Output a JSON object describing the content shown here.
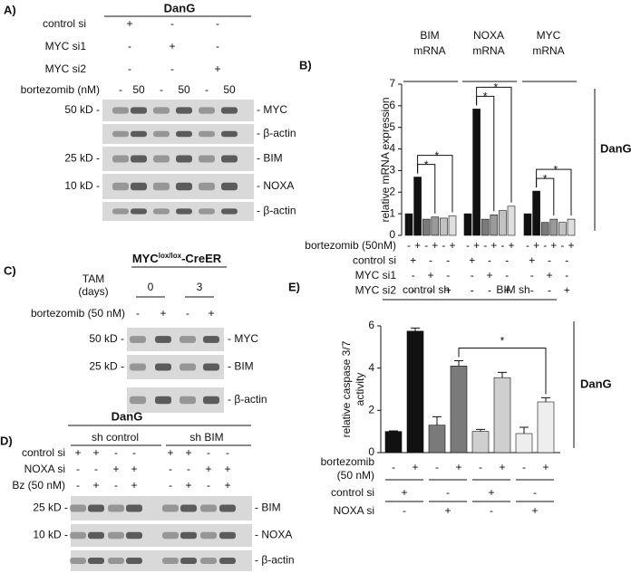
{
  "figure": {
    "panel_a": {
      "label": "A)",
      "cell_line": "DanG",
      "conditions": [
        {
          "label": "control si",
          "marks": [
            "+",
            "-",
            "-"
          ]
        },
        {
          "label": "MYC si1",
          "marks": [
            "-",
            "+",
            "-"
          ]
        },
        {
          "label": "MYC si2",
          "marks": [
            "-",
            "-",
            "+"
          ]
        }
      ],
      "treatment": {
        "label": "bortezomib (nM)",
        "marks": [
          "-",
          "50",
          "-",
          "50",
          "-",
          "50"
        ]
      },
      "blots": [
        {
          "size": "50 kD -",
          "protein": "- MYC"
        },
        {
          "protein": "- β-actin"
        },
        {
          "size": "25 kD -",
          "protein": "- BIM"
        },
        {
          "size": "10 kD -",
          "protein": "- NOXA"
        },
        {
          "protein": "- β-actin"
        }
      ]
    },
    "panel_c": {
      "label": "C)",
      "model": [
        "MYC",
        "lox/lox",
        "-CreER"
      ],
      "tam": {
        "label": [
          "TAM",
          "(days)"
        ],
        "days": [
          "0",
          "3"
        ]
      },
      "treatment": {
        "label": "bortezomib (50 nM)",
        "marks": [
          "-",
          "+",
          "-",
          "+"
        ]
      },
      "blots": [
        {
          "size": "50 kD -",
          "protein": "- MYC"
        },
        {
          "size": "25 kD -",
          "protein": "- BIM"
        },
        {
          "protein": "- β-actin"
        }
      ]
    },
    "panel_d": {
      "label": "D)",
      "cell_line": "DanG",
      "groups": [
        "sh control",
        "sh BIM"
      ],
      "conditions": [
        {
          "label": "control si",
          "marks": [
            "+",
            "+",
            "-",
            "-",
            "+",
            "+",
            "-",
            "-"
          ]
        },
        {
          "label": "NOXA si",
          "marks": [
            "-",
            "-",
            "+",
            "+",
            "-",
            "-",
            "+",
            "+"
          ]
        },
        {
          "label": "Bz (50 nM)",
          "marks": [
            "-",
            "+",
            "-",
            "+",
            "-",
            "+",
            "-",
            "+"
          ]
        }
      ],
      "blots": [
        {
          "size": "25 kD -",
          "protein": "- BIM"
        },
        {
          "size": "10 kD -",
          "protein": "- NOXA"
        },
        {
          "protein": "- β-actin"
        }
      ]
    }
  },
  "chart_data": [
    {
      "type": "bar",
      "label": "B)",
      "y_label": "relative mRNA expression",
      "side_label": "DanG",
      "categories": [
        [
          "BIM",
          "mRNA"
        ],
        [
          "NOXA",
          "mRNA"
        ],
        [
          "MYC",
          "mRNA"
        ]
      ],
      "values": [
        [
          1.0,
          2.7,
          0.75,
          0.85,
          0.8,
          0.9
        ],
        [
          1.0,
          5.85,
          0.75,
          0.95,
          1.15,
          1.35
        ],
        [
          1.0,
          2.05,
          0.6,
          0.75,
          0.6,
          0.75
        ]
      ],
      "colors": [
        "#111111",
        "#111111",
        "#7a7a7a",
        "#9a9a9a",
        "#c2c2c2",
        "#dedede"
      ],
      "ylim": [
        0,
        7
      ],
      "yticks": [
        0,
        1,
        2,
        3,
        4,
        5,
        6,
        7
      ],
      "significance": [
        [
          "*",
          "*"
        ],
        [
          "*",
          "*"
        ],
        [
          "*",
          "*"
        ]
      ],
      "conditions": [
        {
          "label": "bortezomib (50nM)",
          "marks": [
            "-",
            "+",
            "-",
            "+",
            "-",
            "+",
            "-",
            "+",
            "-",
            "+",
            "-",
            "+",
            "-",
            "+",
            "-",
            "+",
            "-",
            "+"
          ]
        },
        {
          "label": "control si",
          "marks": [
            "+",
            "-",
            "-",
            "+",
            "-",
            "-",
            "+",
            "-",
            "-"
          ]
        },
        {
          "label": "MYC si1",
          "marks": [
            "-",
            "+",
            "-",
            "-",
            "+",
            "-",
            "-",
            "+",
            "-"
          ]
        },
        {
          "label": "MYC si2",
          "marks": [
            "-",
            "-",
            "+",
            "-",
            "-",
            "+",
            "-",
            "-",
            "+"
          ]
        }
      ]
    },
    {
      "type": "bar",
      "label": "E)",
      "y_label": [
        "relative caspase 3/7",
        "activity"
      ],
      "side_label": "DanG",
      "groups": [
        "control sh",
        "BIM sh"
      ],
      "values": [
        1.0,
        5.75,
        1.3,
        4.1,
        1.0,
        3.55,
        0.9,
        2.4
      ],
      "errors": [
        0.03,
        0.15,
        0.4,
        0.25,
        0.1,
        0.25,
        0.3,
        0.2
      ],
      "colors": [
        "#111111",
        "#111111",
        "#7a7a7a",
        "#7a7a7a",
        "#cfcfcf",
        "#cfcfcf",
        "#eeeeee",
        "#eeeeee"
      ],
      "ylim": [
        0,
        6
      ],
      "yticks": [
        0,
        2,
        4,
        6
      ],
      "significance": "*",
      "conditions": [
        {
          "label": [
            "bortezomib",
            "(50 nM)"
          ],
          "marks": [
            "-",
            "+",
            "-",
            "+",
            "-",
            "+",
            "-",
            "+"
          ]
        },
        {
          "label": "control si",
          "marks": [
            "+",
            "-",
            "+",
            "-"
          ]
        },
        {
          "label": "NOXA si",
          "marks": [
            "-",
            "+",
            "-",
            "+"
          ]
        }
      ]
    }
  ]
}
